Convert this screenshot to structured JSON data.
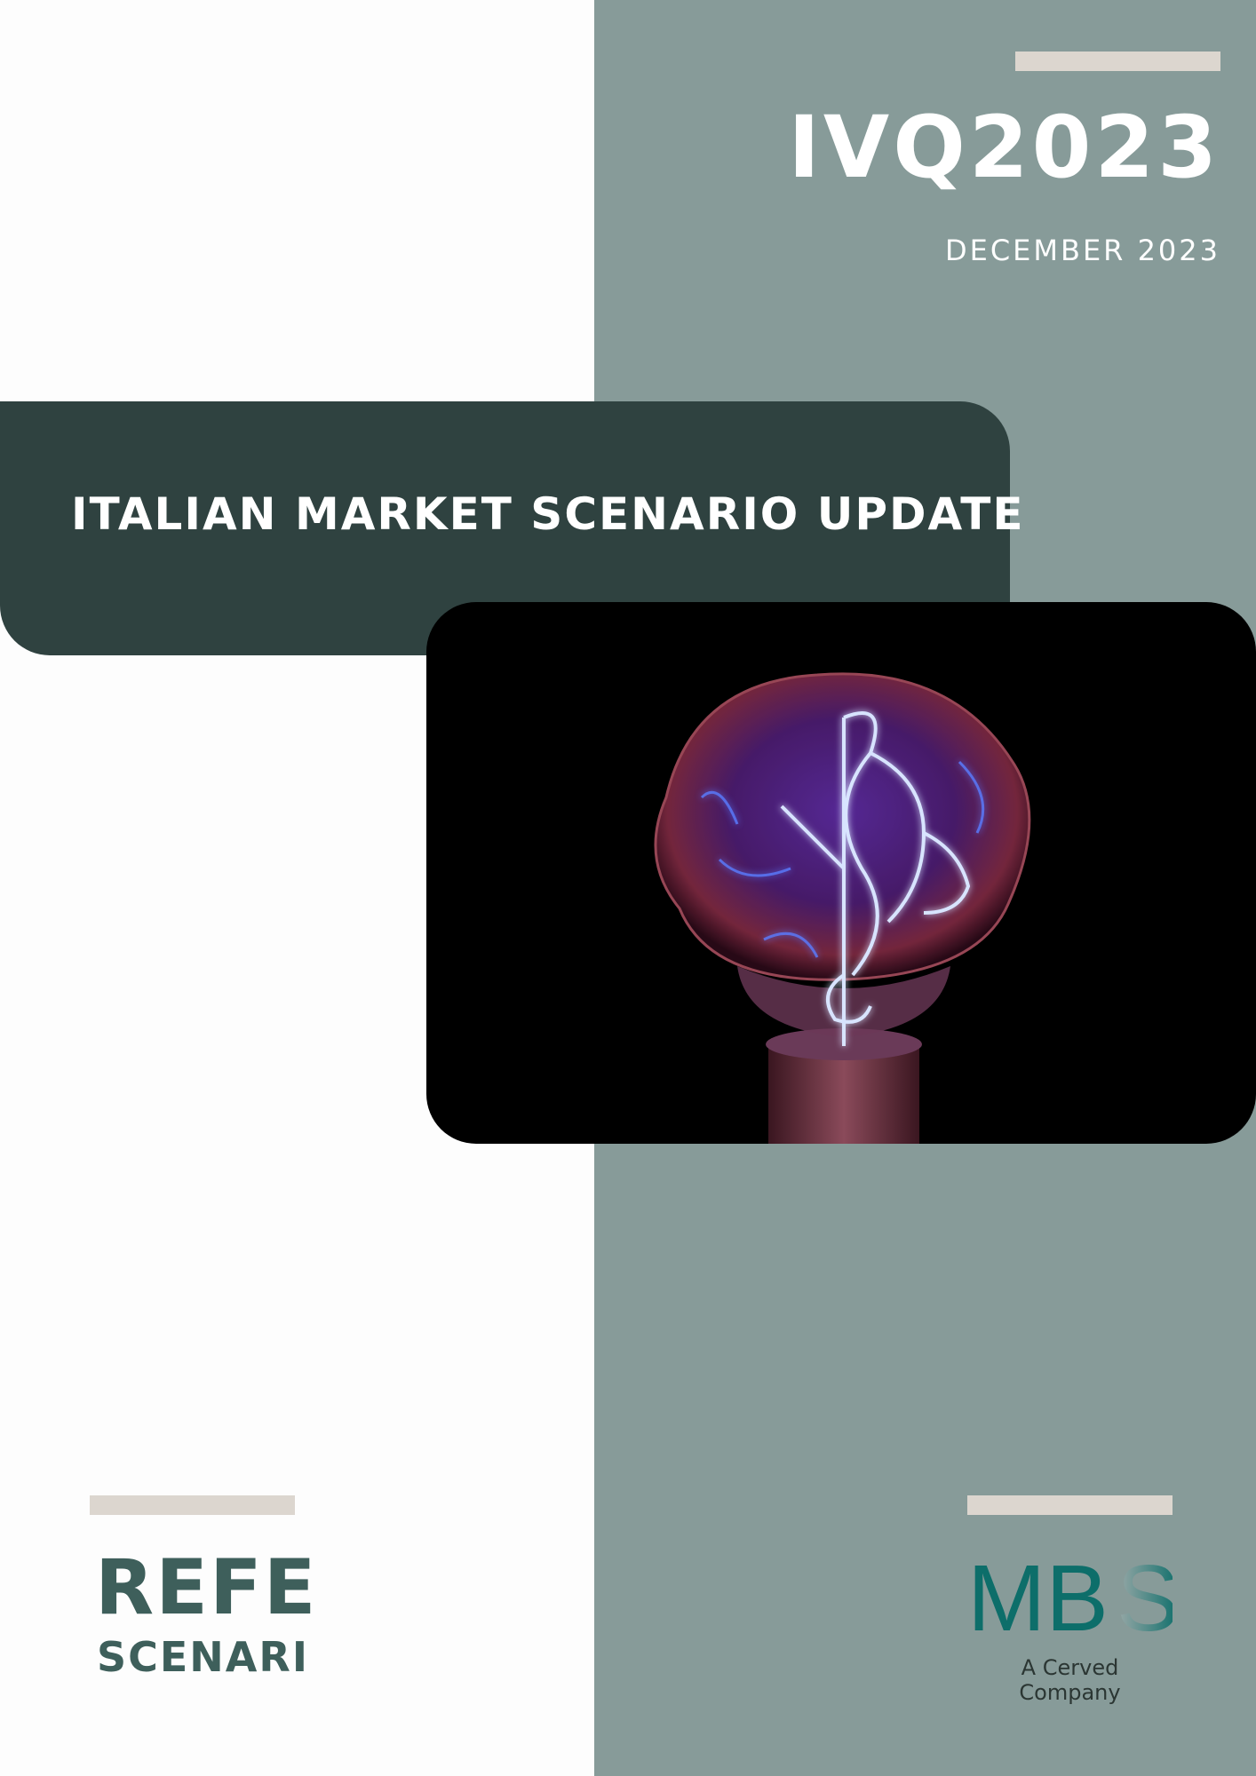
{
  "header": {
    "quarter": "IVQ2023",
    "date": "DECEMBER 2023"
  },
  "title": "ITALIAN MARKET SCENARIO UPDATE",
  "brand_left": {
    "line1": "REFE",
    "line2": "SCENARI"
  },
  "brand_right": {
    "logo_text": "MBS",
    "tagline": "A Cerved Company"
  },
  "colors": {
    "panel": "#879b99",
    "banner": "#2f4240",
    "accent": "#dcd6cf",
    "brand_text": "#3e5f5b",
    "logo_teal": "#0d6e6a"
  },
  "image": {
    "icon": "light-bulb-photo"
  }
}
